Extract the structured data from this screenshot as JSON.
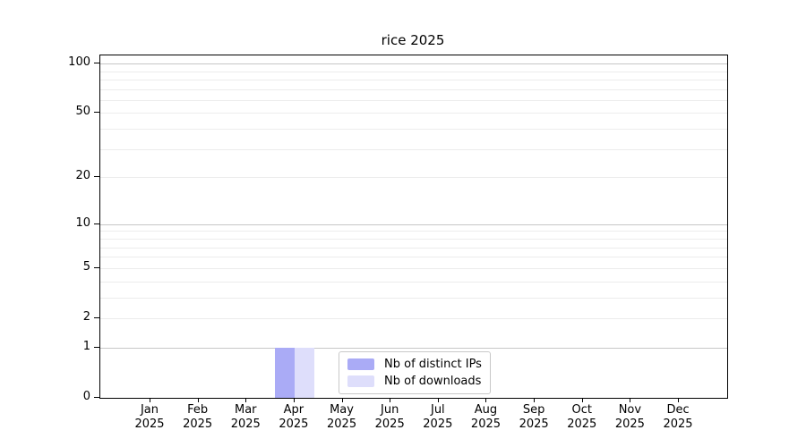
{
  "chart_data": {
    "type": "bar",
    "title": "rice 2025",
    "x_axis": {
      "months": [
        "Jan",
        "Feb",
        "Mar",
        "Apr",
        "May",
        "Jun",
        "Jul",
        "Aug",
        "Sep",
        "Oct",
        "Nov",
        "Dec"
      ],
      "year": "2025"
    },
    "y_axis": {
      "scale": "log10(1+value)",
      "min": 0,
      "max": 112,
      "tick_values": [
        0,
        1,
        2,
        5,
        10,
        20,
        50,
        100
      ],
      "major_gridlines": [
        1,
        10,
        100
      ],
      "minor_gridlines": [
        2,
        3,
        4,
        5,
        6,
        7,
        8,
        9,
        20,
        30,
        40,
        50,
        60,
        70,
        80,
        90
      ],
      "major_gridline_color": "#c7c7c7",
      "minor_gridline_color": "#ececec"
    },
    "series": [
      {
        "name": "Nb of distinct IPs",
        "color": "#aaabf6",
        "values": [
          0,
          0,
          0,
          1,
          0,
          0,
          0,
          0,
          0,
          0,
          0,
          0
        ]
      },
      {
        "name": "Nb of downloads",
        "color": "#dedefb",
        "values": [
          0,
          0,
          0,
          1,
          0,
          0,
          0,
          0,
          0,
          0,
          0,
          0
        ]
      }
    ],
    "legend": {
      "position": "inside-bottom-center",
      "entries": [
        "Nb of distinct IPs",
        "Nb of downloads"
      ]
    },
    "grid": true
  }
}
